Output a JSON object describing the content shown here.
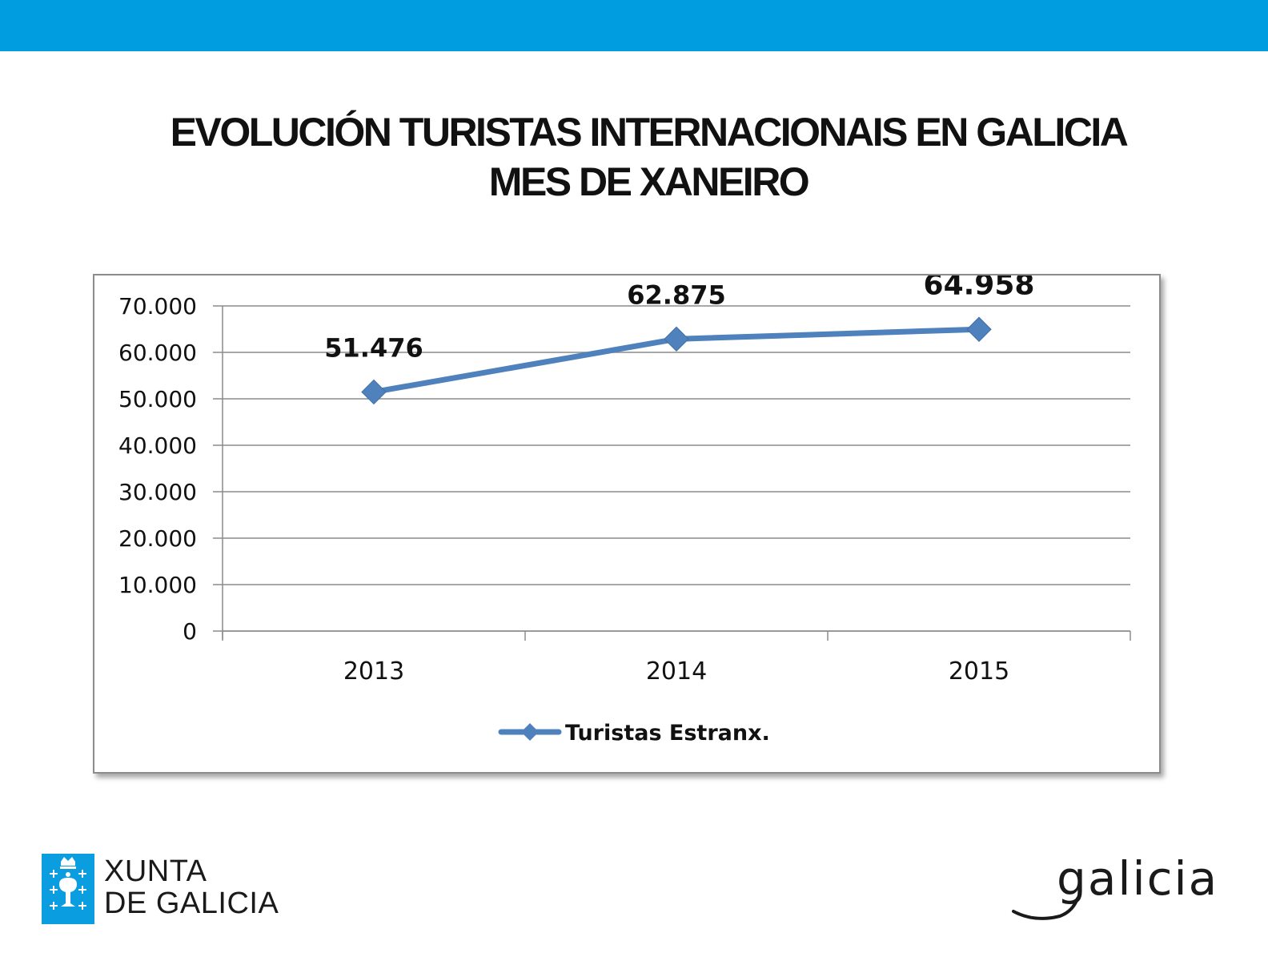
{
  "slide": {
    "title_line1": "EVOLUCIÓN TURISTAS INTERNACIONAIS EN GALICIA",
    "title_line2": "MES DE XANEIRO"
  },
  "colors": {
    "top_bar": "#009ee0",
    "series": "#4f81bd",
    "grid": "#8c8c8c",
    "text": "#111111"
  },
  "chart_data": {
    "type": "line",
    "title": "EVOLUCIÓN TURISTAS INTERNACIONAIS EN GALICIA MES DE XANEIRO",
    "categories": [
      "2013",
      "2014",
      "2015"
    ],
    "series": [
      {
        "name": "Turistas Estranx.",
        "values": [
          51476,
          62875,
          64958
        ],
        "data_labels": [
          "51.476",
          "62.875",
          "64.958"
        ],
        "marker": "diamond"
      }
    ],
    "y_ticks": [
      0,
      10000,
      20000,
      30000,
      40000,
      50000,
      60000,
      70000
    ],
    "y_tick_labels": [
      "0",
      "10.000",
      "20.000",
      "30.000",
      "40.000",
      "50.000",
      "60.000",
      "70.000"
    ],
    "ylim": [
      0,
      70000
    ],
    "grid": true,
    "legend_position": "bottom",
    "xlabel": "",
    "ylabel": ""
  },
  "footer": {
    "xunta_line1": "XUNTA",
    "xunta_line2": "DE GALICIA",
    "galicia_logo": "galicia"
  }
}
